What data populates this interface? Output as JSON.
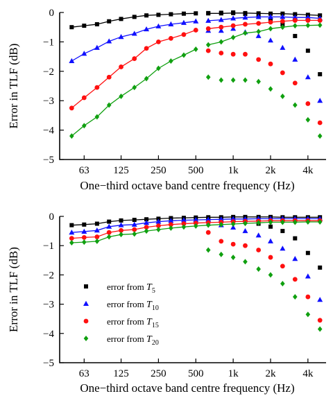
{
  "chart_data": [
    {
      "type": "line",
      "xscale": "log",
      "xlabel": "One−third octave band centre frequency (Hz)",
      "ylabel": "Error in TLF (dB)",
      "xlim": [
        40,
        5600
      ],
      "ylim": [
        -5,
        0
      ],
      "xticks": [
        {
          "value": 63,
          "label": "63"
        },
        {
          "value": 125,
          "label": "125"
        },
        {
          "value": 250,
          "label": "250"
        },
        {
          "value": 500,
          "label": "500"
        },
        {
          "value": 1000,
          "label": "1k"
        },
        {
          "value": 2000,
          "label": "2k"
        },
        {
          "value": 4000,
          "label": "4k"
        }
      ],
      "yticks": [
        {
          "value": 0,
          "label": "0"
        },
        {
          "value": -1,
          "label": "−1"
        },
        {
          "value": -2,
          "label": "−2"
        },
        {
          "value": -3,
          "label": "−3"
        },
        {
          "value": -4,
          "label": "−4"
        },
        {
          "value": -5,
          "label": "−5"
        }
      ],
      "grid": false,
      "legend": false,
      "series": [
        {
          "color": "#000000",
          "marker": "square",
          "x": [
            50,
            63,
            80,
            100,
            125,
            160,
            200,
            250,
            315,
            400,
            500
          ],
          "y": [
            -0.5,
            -0.45,
            -0.4,
            -0.3,
            -0.22,
            -0.15,
            -0.1,
            -0.08,
            -0.06,
            -0.04,
            -0.03
          ],
          "line": true
        },
        {
          "color": "#000000",
          "marker": "square",
          "x": [
            630,
            800,
            1000,
            1250,
            1600,
            2000,
            2500,
            3150,
            4000,
            5000
          ],
          "y": [
            -0.02,
            -0.01,
            0.0,
            -0.05,
            -0.15,
            -0.25,
            -0.4,
            -0.8,
            -1.3,
            -2.1
          ],
          "line": false
        },
        {
          "color": "#1010ff",
          "marker": "triangle",
          "x": [
            50,
            63,
            80,
            100,
            125,
            160,
            200,
            250,
            315,
            400,
            500
          ],
          "y": [
            -1.65,
            -1.4,
            -1.2,
            -0.98,
            -0.83,
            -0.72,
            -0.57,
            -0.47,
            -0.4,
            -0.35,
            -0.3
          ],
          "line": true
        },
        {
          "color": "#1010ff",
          "marker": "triangle",
          "x": [
            630,
            800,
            1000,
            1250,
            1600,
            2000,
            2500,
            3150,
            4000,
            5000
          ],
          "y": [
            -0.62,
            -0.62,
            -0.55,
            -0.67,
            -0.8,
            -0.95,
            -1.2,
            -1.6,
            -2.2,
            -3.0
          ],
          "line": false
        },
        {
          "color": "#ff1010",
          "marker": "circle",
          "x": [
            50,
            63,
            80,
            100,
            125,
            160,
            200,
            250,
            315,
            400,
            500
          ],
          "y": [
            -3.25,
            -2.9,
            -2.55,
            -2.2,
            -1.85,
            -1.57,
            -1.22,
            -1.0,
            -0.88,
            -0.75,
            -0.6
          ],
          "line": true
        },
        {
          "color": "#ff1010",
          "marker": "circle",
          "x": [
            630,
            800,
            1000,
            1250,
            1600,
            2000,
            2500,
            3150,
            4000,
            5000
          ],
          "y": [
            -1.3,
            -1.38,
            -1.42,
            -1.42,
            -1.6,
            -1.75,
            -2.05,
            -2.4,
            -3.1,
            -3.75
          ],
          "line": false
        },
        {
          "color": "#10a010",
          "marker": "diamond",
          "x": [
            50,
            63,
            80,
            100,
            125,
            160,
            200,
            250,
            315,
            400,
            500
          ],
          "y": [
            -4.2,
            -3.85,
            -3.55,
            -3.15,
            -2.85,
            -2.55,
            -2.25,
            -1.9,
            -1.65,
            -1.45,
            -1.25
          ],
          "line": true
        },
        {
          "color": "#10a010",
          "marker": "diamond",
          "x": [
            630,
            800,
            1000,
            1250,
            1600,
            2000,
            2500,
            3150,
            4000,
            5000
          ],
          "y": [
            -2.2,
            -2.3,
            -2.3,
            -2.3,
            -2.35,
            -2.6,
            -2.85,
            -3.15,
            -3.65,
            -4.2
          ],
          "line": false
        },
        {
          "color": "#000000",
          "marker": "square",
          "x": [
            630,
            800,
            1000,
            1250,
            1600,
            2000,
            2500,
            3150,
            4000,
            5000
          ],
          "y": [
            -0.03,
            -0.03,
            -0.02,
            -0.02,
            -0.03,
            -0.04,
            -0.04,
            -0.06,
            -0.08,
            -0.1
          ],
          "line": true
        },
        {
          "color": "#1010ff",
          "marker": "triangle",
          "x": [
            630,
            800,
            1000,
            1250,
            1600,
            2000,
            2500,
            3150,
            4000,
            5000
          ],
          "y": [
            -0.28,
            -0.25,
            -0.2,
            -0.17,
            -0.15,
            -0.15,
            -0.15,
            -0.17,
            -0.17,
            -0.2
          ],
          "line": true
        },
        {
          "color": "#ff1010",
          "marker": "circle",
          "x": [
            630,
            800,
            1000,
            1250,
            1600,
            2000,
            2500,
            3150,
            4000,
            5000
          ],
          "y": [
            -0.55,
            -0.5,
            -0.45,
            -0.4,
            -0.37,
            -0.33,
            -0.3,
            -0.27,
            -0.27,
            -0.27
          ],
          "line": true
        },
        {
          "color": "#10a010",
          "marker": "diamond",
          "x": [
            630,
            800,
            1000,
            1250,
            1600,
            2000,
            2500,
            3150,
            4000,
            5000
          ],
          "y": [
            -1.1,
            -1.0,
            -0.85,
            -0.7,
            -0.65,
            -0.55,
            -0.5,
            -0.45,
            -0.44,
            -0.43
          ],
          "line": true
        }
      ]
    },
    {
      "type": "line",
      "xscale": "log",
      "xlabel": "One−third octave band centre frequency (Hz)",
      "ylabel": "Error in TLF (dB)",
      "xlim": [
        40,
        5600
      ],
      "ylim": [
        -5,
        0
      ],
      "xticks": [
        {
          "value": 63,
          "label": "63"
        },
        {
          "value": 125,
          "label": "125"
        },
        {
          "value": 250,
          "label": "250"
        },
        {
          "value": 500,
          "label": "500"
        },
        {
          "value": 1000,
          "label": "1k"
        },
        {
          "value": 2000,
          "label": "2k"
        },
        {
          "value": 4000,
          "label": "4k"
        }
      ],
      "yticks": [
        {
          "value": 0,
          "label": "0"
        },
        {
          "value": -1,
          "label": "−1"
        },
        {
          "value": -2,
          "label": "−2"
        },
        {
          "value": -3,
          "label": "−3"
        },
        {
          "value": -4,
          "label": "−4"
        },
        {
          "value": -5,
          "label": "−5"
        }
      ],
      "grid": false,
      "legend": "lower-left",
      "legend_entries": [
        {
          "text": "error from ",
          "symbol": "T",
          "subscript": "5",
          "color": "#000000",
          "marker": "square"
        },
        {
          "text": "error from ",
          "symbol": "T",
          "subscript": "10",
          "color": "#1010ff",
          "marker": "triangle"
        },
        {
          "text": "error from ",
          "symbol": "T",
          "subscript": "15",
          "color": "#ff1010",
          "marker": "circle"
        },
        {
          "text": "error from ",
          "symbol": "T",
          "subscript": "20",
          "color": "#10a010",
          "marker": "diamond"
        }
      ],
      "series": [
        {
          "color": "#000000",
          "marker": "square",
          "x": [
            50,
            63,
            80,
            100,
            125,
            160,
            200,
            250,
            315,
            400,
            500,
            630,
            800,
            1000,
            1250,
            1600,
            2000,
            2500,
            3150,
            4000,
            5000
          ],
          "y": [
            -0.3,
            -0.28,
            -0.25,
            -0.18,
            -0.14,
            -0.12,
            -0.1,
            -0.08,
            -0.06,
            -0.05,
            -0.04,
            -0.03,
            -0.03,
            -0.02,
            -0.02,
            -0.02,
            -0.02,
            -0.03,
            -0.03,
            -0.03,
            -0.03
          ],
          "line": true
        },
        {
          "color": "#000000",
          "marker": "square",
          "x": [
            630,
            800,
            1000,
            1250,
            1600,
            2000,
            2500,
            3150,
            4000,
            5000
          ],
          "y": [
            -0.08,
            -0.1,
            -0.13,
            -0.18,
            -0.25,
            -0.35,
            -0.5,
            -0.75,
            -1.25,
            -1.75
          ],
          "line": false
        },
        {
          "color": "#1010ff",
          "marker": "triangle",
          "x": [
            50,
            63,
            80,
            100,
            125,
            160,
            200,
            250,
            315,
            400,
            500,
            630,
            800,
            1000,
            1250,
            1600,
            2000,
            2500,
            3150,
            4000,
            5000
          ],
          "y": [
            -0.55,
            -0.52,
            -0.48,
            -0.35,
            -0.3,
            -0.28,
            -0.22,
            -0.18,
            -0.15,
            -0.13,
            -0.12,
            -0.11,
            -0.1,
            -0.09,
            -0.09,
            -0.08,
            -0.08,
            -0.08,
            -0.08,
            -0.08,
            -0.08
          ],
          "line": true
        },
        {
          "color": "#1010ff",
          "marker": "triangle",
          "x": [
            630,
            800,
            1000,
            1250,
            1600,
            2000,
            2500,
            3150,
            4000,
            5000
          ],
          "y": [
            -0.25,
            -0.3,
            -0.38,
            -0.5,
            -0.65,
            -0.85,
            -1.1,
            -1.45,
            -2.05,
            -2.85
          ],
          "line": false
        },
        {
          "color": "#ff1010",
          "marker": "circle",
          "x": [
            50,
            63,
            80,
            100,
            125,
            160,
            200,
            250,
            315,
            400,
            500,
            630,
            800,
            1000,
            1250,
            1600,
            2000,
            2500,
            3150,
            4000,
            5000
          ],
          "y": [
            -0.75,
            -0.72,
            -0.7,
            -0.55,
            -0.48,
            -0.45,
            -0.37,
            -0.32,
            -0.28,
            -0.25,
            -0.23,
            -0.21,
            -0.2,
            -0.18,
            -0.17,
            -0.16,
            -0.15,
            -0.15,
            -0.15,
            -0.15,
            -0.15
          ],
          "line": true
        },
        {
          "color": "#ff1010",
          "marker": "circle",
          "x": [
            630,
            800,
            1000,
            1250,
            1600,
            2000,
            2500,
            3150,
            4000,
            5000
          ],
          "y": [
            -0.55,
            -0.85,
            -0.95,
            -1.0,
            -1.15,
            -1.4,
            -1.7,
            -2.15,
            -2.75,
            -3.55
          ],
          "line": false
        },
        {
          "color": "#10a010",
          "marker": "diamond",
          "x": [
            50,
            63,
            80,
            100,
            125,
            160,
            200,
            250,
            315,
            400,
            500,
            630,
            800,
            1000,
            1250,
            1600,
            2000,
            2500,
            3150,
            4000,
            5000
          ],
          "y": [
            -0.9,
            -0.88,
            -0.85,
            -0.7,
            -0.62,
            -0.6,
            -0.5,
            -0.45,
            -0.4,
            -0.36,
            -0.33,
            -0.3,
            -0.28,
            -0.26,
            -0.24,
            -0.22,
            -0.2,
            -0.2,
            -0.2,
            -0.19,
            -0.19
          ],
          "line": true
        },
        {
          "color": "#10a010",
          "marker": "diamond",
          "x": [
            630,
            800,
            1000,
            1250,
            1600,
            2000,
            2500,
            3150,
            4000,
            5000
          ],
          "y": [
            -1.15,
            -1.3,
            -1.4,
            -1.55,
            -1.8,
            -2.0,
            -2.3,
            -2.75,
            -3.35,
            -3.85
          ],
          "line": false
        }
      ]
    }
  ]
}
